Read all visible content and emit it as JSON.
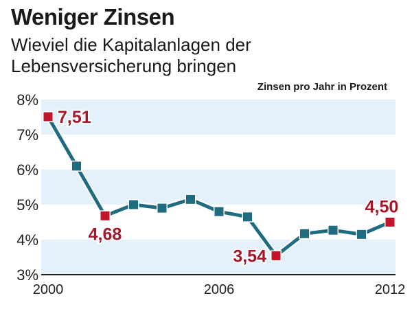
{
  "chart_data": {
    "type": "line",
    "title": "Weniger Zinsen",
    "subtitle": "Wieviel die Kapitalanlagen der Lebensversicherung bringen",
    "unit_label": "Zinsen pro Jahr in Prozent",
    "xlabel": "",
    "ylabel": "",
    "x": [
      2000,
      2001,
      2002,
      2003,
      2004,
      2005,
      2006,
      2007,
      2008,
      2009,
      2010,
      2011,
      2012
    ],
    "series": [
      {
        "name": "Zinsen pro Jahr in Prozent",
        "values": [
          7.51,
          6.1,
          4.68,
          5.0,
          4.9,
          5.15,
          4.8,
          4.65,
          3.54,
          4.17,
          4.27,
          4.15,
          4.5
        ]
      }
    ],
    "annotations": [
      {
        "x": 2000,
        "label": "7,51",
        "position": "right"
      },
      {
        "x": 2002,
        "label": "4,68",
        "position": "below"
      },
      {
        "x": 2008,
        "label": "3,54",
        "position": "left"
      },
      {
        "x": 2012,
        "label": "4,50",
        "position": "above"
      }
    ],
    "xticks": [
      2000,
      2006,
      2012
    ],
    "xtick_labels": [
      "2000",
      "2006",
      "2012"
    ],
    "yticks": [
      3,
      4,
      5,
      6,
      7,
      8
    ],
    "ytick_labels": [
      "3%",
      "4%",
      "5%",
      "6%",
      "7%",
      "8%"
    ],
    "ylim": [
      3,
      8
    ],
    "xlim": [
      2000,
      2012
    ],
    "grid": "alternating horizontal bands",
    "colors": {
      "line": "#1f6b80",
      "marker": "#1f6b80",
      "highlight": "#c0152a",
      "highlight_text": "#a3182a",
      "band": "#e4f1fa",
      "axis": "#222222"
    }
  }
}
